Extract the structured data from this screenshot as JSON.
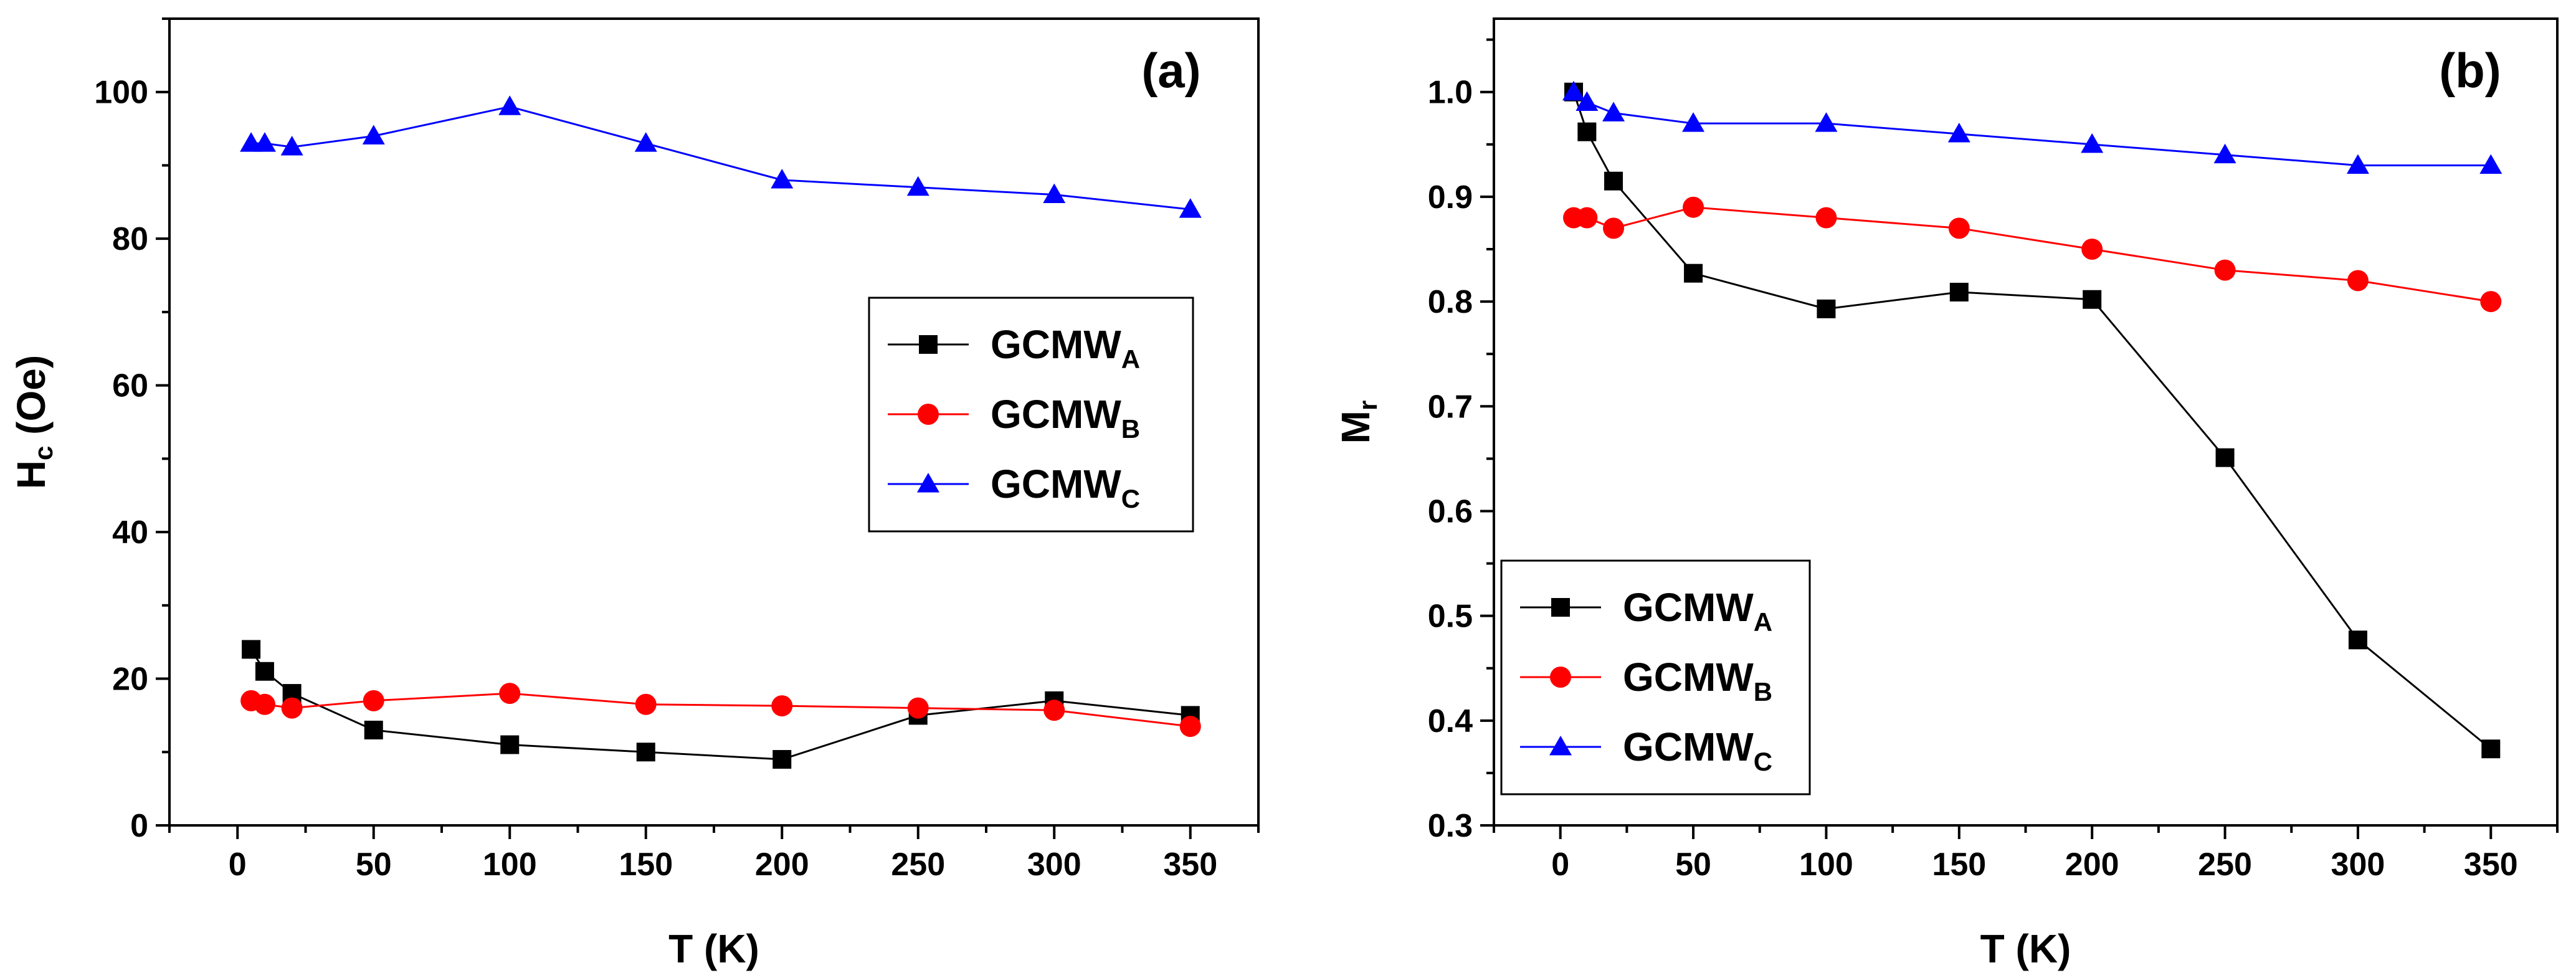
{
  "chart_data": [
    {
      "type": "line",
      "panel_label": "(a)",
      "xlabel": "T (K)",
      "ylabel_main": "H",
      "ylabel_sub": "c",
      "ylabel_rest": " (Oe)",
      "xlim": [
        -25,
        375
      ],
      "ylim": [
        0,
        110
      ],
      "xticks": [
        0,
        50,
        100,
        150,
        200,
        250,
        300,
        350
      ],
      "xticklabels": [
        "0",
        "50",
        "100",
        "150",
        "200",
        "250",
        "300",
        "350"
      ],
      "yticks": [
        0,
        20,
        40,
        60,
        80,
        100
      ],
      "yticklabels": [
        "0",
        "20",
        "40",
        "60",
        "80",
        "100"
      ],
      "legend_position": "center-right",
      "series": [
        {
          "name": "GCMW",
          "sub": "A",
          "color": "#000000",
          "marker": "square",
          "x": [
            5,
            10,
            20,
            50,
            100,
            150,
            200,
            250,
            300,
            350
          ],
          "y": [
            24,
            21,
            18,
            13,
            11,
            10,
            9,
            15,
            17,
            15
          ]
        },
        {
          "name": "GCMW",
          "sub": "B",
          "color": "#ff0000",
          "marker": "circle",
          "x": [
            5,
            10,
            20,
            50,
            100,
            150,
            200,
            250,
            300,
            350
          ],
          "y": [
            17,
            16.5,
            16,
            17,
            18,
            16.5,
            16.3,
            16,
            15.7,
            13.5
          ]
        },
        {
          "name": "GCMW",
          "sub": "C",
          "color": "#0000ff",
          "marker": "triangle",
          "x": [
            5,
            10,
            20,
            50,
            100,
            150,
            200,
            250,
            300,
            350
          ],
          "y": [
            93,
            93,
            92.5,
            94,
            98,
            93,
            88,
            87,
            86,
            84
          ]
        }
      ]
    },
    {
      "type": "line",
      "panel_label": "(b)",
      "xlabel": "T (K)",
      "ylabel_main": "M",
      "ylabel_sub": "r",
      "ylabel_rest": "",
      "xlim": [
        -25,
        375
      ],
      "ylim": [
        0.3,
        1.07
      ],
      "xticks": [
        0,
        50,
        100,
        150,
        200,
        250,
        300,
        350
      ],
      "xticklabels": [
        "0",
        "50",
        "100",
        "150",
        "200",
        "250",
        "300",
        "350"
      ],
      "yticks": [
        0.3,
        0.4,
        0.5,
        0.6,
        0.7,
        0.8,
        0.9,
        1.0
      ],
      "yticklabels": [
        "0.3",
        "0.4",
        "0.5",
        "0.6",
        "0.7",
        "0.8",
        "0.9",
        "1.0"
      ],
      "legend_position": "bottom-left",
      "series": [
        {
          "name": "GCMW",
          "sub": "A",
          "color": "#000000",
          "marker": "square",
          "x": [
            5,
            10,
            20,
            50,
            100,
            150,
            200,
            250,
            300,
            350
          ],
          "y": [
            1.0,
            0.962,
            0.915,
            0.827,
            0.793,
            0.809,
            0.802,
            0.651,
            0.477,
            0.373
          ]
        },
        {
          "name": "GCMW",
          "sub": "B",
          "color": "#ff0000",
          "marker": "circle",
          "x": [
            5,
            10,
            20,
            50,
            100,
            150,
            200,
            250,
            300,
            350
          ],
          "y": [
            0.88,
            0.88,
            0.87,
            0.89,
            0.88,
            0.87,
            0.85,
            0.83,
            0.82,
            0.8
          ]
        },
        {
          "name": "GCMW",
          "sub": "C",
          "color": "#0000ff",
          "marker": "triangle",
          "x": [
            5,
            10,
            20,
            50,
            100,
            150,
            200,
            250,
            300,
            350
          ],
          "y": [
            1.0,
            0.99,
            0.98,
            0.97,
            0.97,
            0.96,
            0.95,
            0.94,
            0.93,
            0.93
          ]
        }
      ]
    }
  ]
}
